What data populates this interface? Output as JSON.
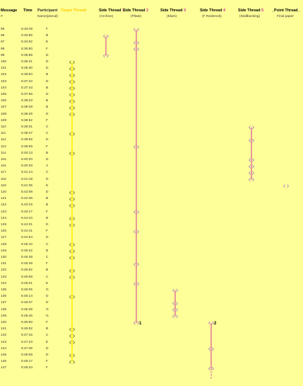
{
  "header": {
    "message": "Message",
    "time": "Time",
    "participant": "Participant",
    "target_thread": "Target Thread",
    "side1": "Side Thread",
    "side1_num": "1",
    "side2": "Side Thread",
    "side2_num": "2",
    "side3": "Side Thread",
    "side3_num": "3",
    "side4": "Side Thread",
    "side4_num": "4",
    "side5": "Side Thread",
    "side5_num": "5",
    "point_thread": "_Point Thread_"
  },
  "subheader": {
    "message": "#",
    "participant": "Name(pseud)",
    "side1": "(Archive)",
    "side2": "(Pilate)",
    "side3": "(Elam)",
    "side4": "(F Redemxk)",
    "side5": "(Stallbacking)",
    "point_thread": "Final paper"
  },
  "rows": [
    {
      "msg": "95",
      "time": "5:33:49",
      "p": "F"
    },
    {
      "msg": "96",
      "time": "5:33:56",
      "p": "B"
    },
    {
      "msg": "97",
      "time": "5:34:52",
      "p": "E"
    },
    {
      "msg": "98",
      "time": "5:35:50",
      "p": "F"
    },
    {
      "msg": "99",
      "time": "5:35:59",
      "p": "D"
    },
    {
      "msg": "100",
      "time": "5:36:21",
      "p": "D"
    },
    {
      "msg": "101",
      "time": "5:36:30",
      "p": "D"
    },
    {
      "msg": "102",
      "time": "5:36:54",
      "p": "B"
    },
    {
      "msg": "103",
      "time": "5:37:22",
      "p": "D"
    },
    {
      "msg": "104",
      "time": "5:37:43",
      "p": "B"
    },
    {
      "msg": "105",
      "time": "5:37:56",
      "p": "D"
    },
    {
      "msg": "106",
      "time": "5:38:23",
      "p": "B"
    },
    {
      "msg": "107",
      "time": "5:38:28",
      "p": "B"
    },
    {
      "msg": "108",
      "time": "5:38:29",
      "p": "D"
    },
    {
      "msg": "109",
      "time": "5:38:52",
      "p": "F"
    },
    {
      "msg": "110",
      "time": "5:39:31",
      "p": "C"
    },
    {
      "msg": "111",
      "time": "5:39:47",
      "p": "C"
    },
    {
      "msg": "112",
      "time": "5:39:56",
      "p": "D"
    },
    {
      "msg": "113",
      "time": "5:39:59",
      "p": "F"
    },
    {
      "msg": "114",
      "time": "5:40:13",
      "p": "B"
    },
    {
      "msg": "115",
      "time": "5:40:20",
      "p": "D"
    },
    {
      "msg": "116",
      "time": "5:40:33",
      "p": "A"
    },
    {
      "msg": "117",
      "time": "5:41:14",
      "p": "C"
    },
    {
      "msg": "118",
      "time": "5:41:18",
      "p": "D"
    },
    {
      "msg": "119",
      "time": "5:41:35",
      "p": "E"
    },
    {
      "msg": "120",
      "time": "5:42:08",
      "p": "D"
    },
    {
      "msg": "121",
      "time": "5:42:36",
      "p": "B"
    },
    {
      "msg": "122",
      "time": "5:43:16",
      "p": "B"
    },
    {
      "msg": "123",
      "time": "5:43:17",
      "p": "F"
    },
    {
      "msg": "124",
      "time": "5:44:10",
      "p": "B"
    },
    {
      "msg": "125",
      "time": "5:44:31",
      "p": "D"
    },
    {
      "msg": "126",
      "time": "5:44:41",
      "p": "F"
    },
    {
      "msg": "127",
      "time": "5:44:54",
      "p": "D"
    },
    {
      "msg": "128",
      "time": "5:45:10",
      "p": "C"
    },
    {
      "msg": "129",
      "time": "5:45:22",
      "p": "B"
    },
    {
      "msg": "130",
      "time": "5:45:28",
      "p": "C"
    },
    {
      "msg": "131",
      "time": "5:45:45",
      "p": "F"
    },
    {
      "msg": "132",
      "time": "5:45:52",
      "p": "B"
    },
    {
      "msg": "133",
      "time": "5:45:58",
      "p": "C"
    },
    {
      "msg": "134",
      "time": "5:46:01",
      "p": "E"
    },
    {
      "msg": "135",
      "time": "5:46:05",
      "p": "G"
    },
    {
      "msg": "136",
      "time": "5:46:14",
      "p": "D"
    },
    {
      "msg": "137",
      "time": "5:46:37",
      "p": "D"
    },
    {
      "msg": "138",
      "time": "5:46:39",
      "p": "G"
    },
    {
      "msg": "139",
      "time": "5:46:46",
      "p": "G"
    },
    {
      "msg": "140",
      "time": "5:46:50",
      "p": "F"
    },
    {
      "msg": "141",
      "time": "5:46:52",
      "p": "B"
    },
    {
      "msg": "142",
      "time": "5:47:16",
      "p": "C"
    },
    {
      "msg": "143",
      "time": "5:47:23",
      "p": "E"
    },
    {
      "msg": "144",
      "time": "5:47:46",
      "p": "D"
    },
    {
      "msg": "145",
      "time": "5:48:08",
      "p": "D"
    },
    {
      "msg": "146",
      "time": "5:48:17",
      "p": "F"
    },
    {
      "msg": "147",
      "time": "5:48:34",
      "p": "F"
    }
  ],
  "thread_labels": {
    "side2_end": "1",
    "side4_start": "2"
  },
  "colors": {
    "background": "#ffff99",
    "target": "#ffee00",
    "target_marker": "#555500",
    "side": "#cc3399",
    "side_marker": "#9966cc"
  },
  "threads": {
    "target": {
      "markers": [
        100,
        101,
        102,
        103,
        104,
        105,
        106,
        107,
        108,
        111,
        114,
        120,
        121,
        122,
        124,
        125,
        128,
        129,
        130,
        132,
        133,
        136,
        141,
        142,
        143,
        145,
        146
      ],
      "range": [
        100,
        146
      ]
    },
    "side1": {
      "markers": [
        96,
        99
      ],
      "range": [
        96,
        99
      ]
    },
    "side2": {
      "markers": [
        95,
        97,
        98,
        113,
        123,
        126,
        131,
        134,
        140
      ],
      "range": [
        95,
        140
      ]
    },
    "side3": {
      "markers": [
        135,
        137,
        138,
        139
      ],
      "range": [
        135,
        139
      ]
    },
    "side4": {
      "markers": [
        140,
        144,
        147
      ],
      "range": [
        140,
        147
      ],
      "dashed_tail": true
    },
    "side5": {
      "markers": [
        110,
        112,
        115,
        116,
        117,
        118
      ],
      "range": [
        110,
        118
      ]
    },
    "point": {
      "markers": [
        119
      ],
      "range": [
        119,
        119
      ]
    }
  }
}
